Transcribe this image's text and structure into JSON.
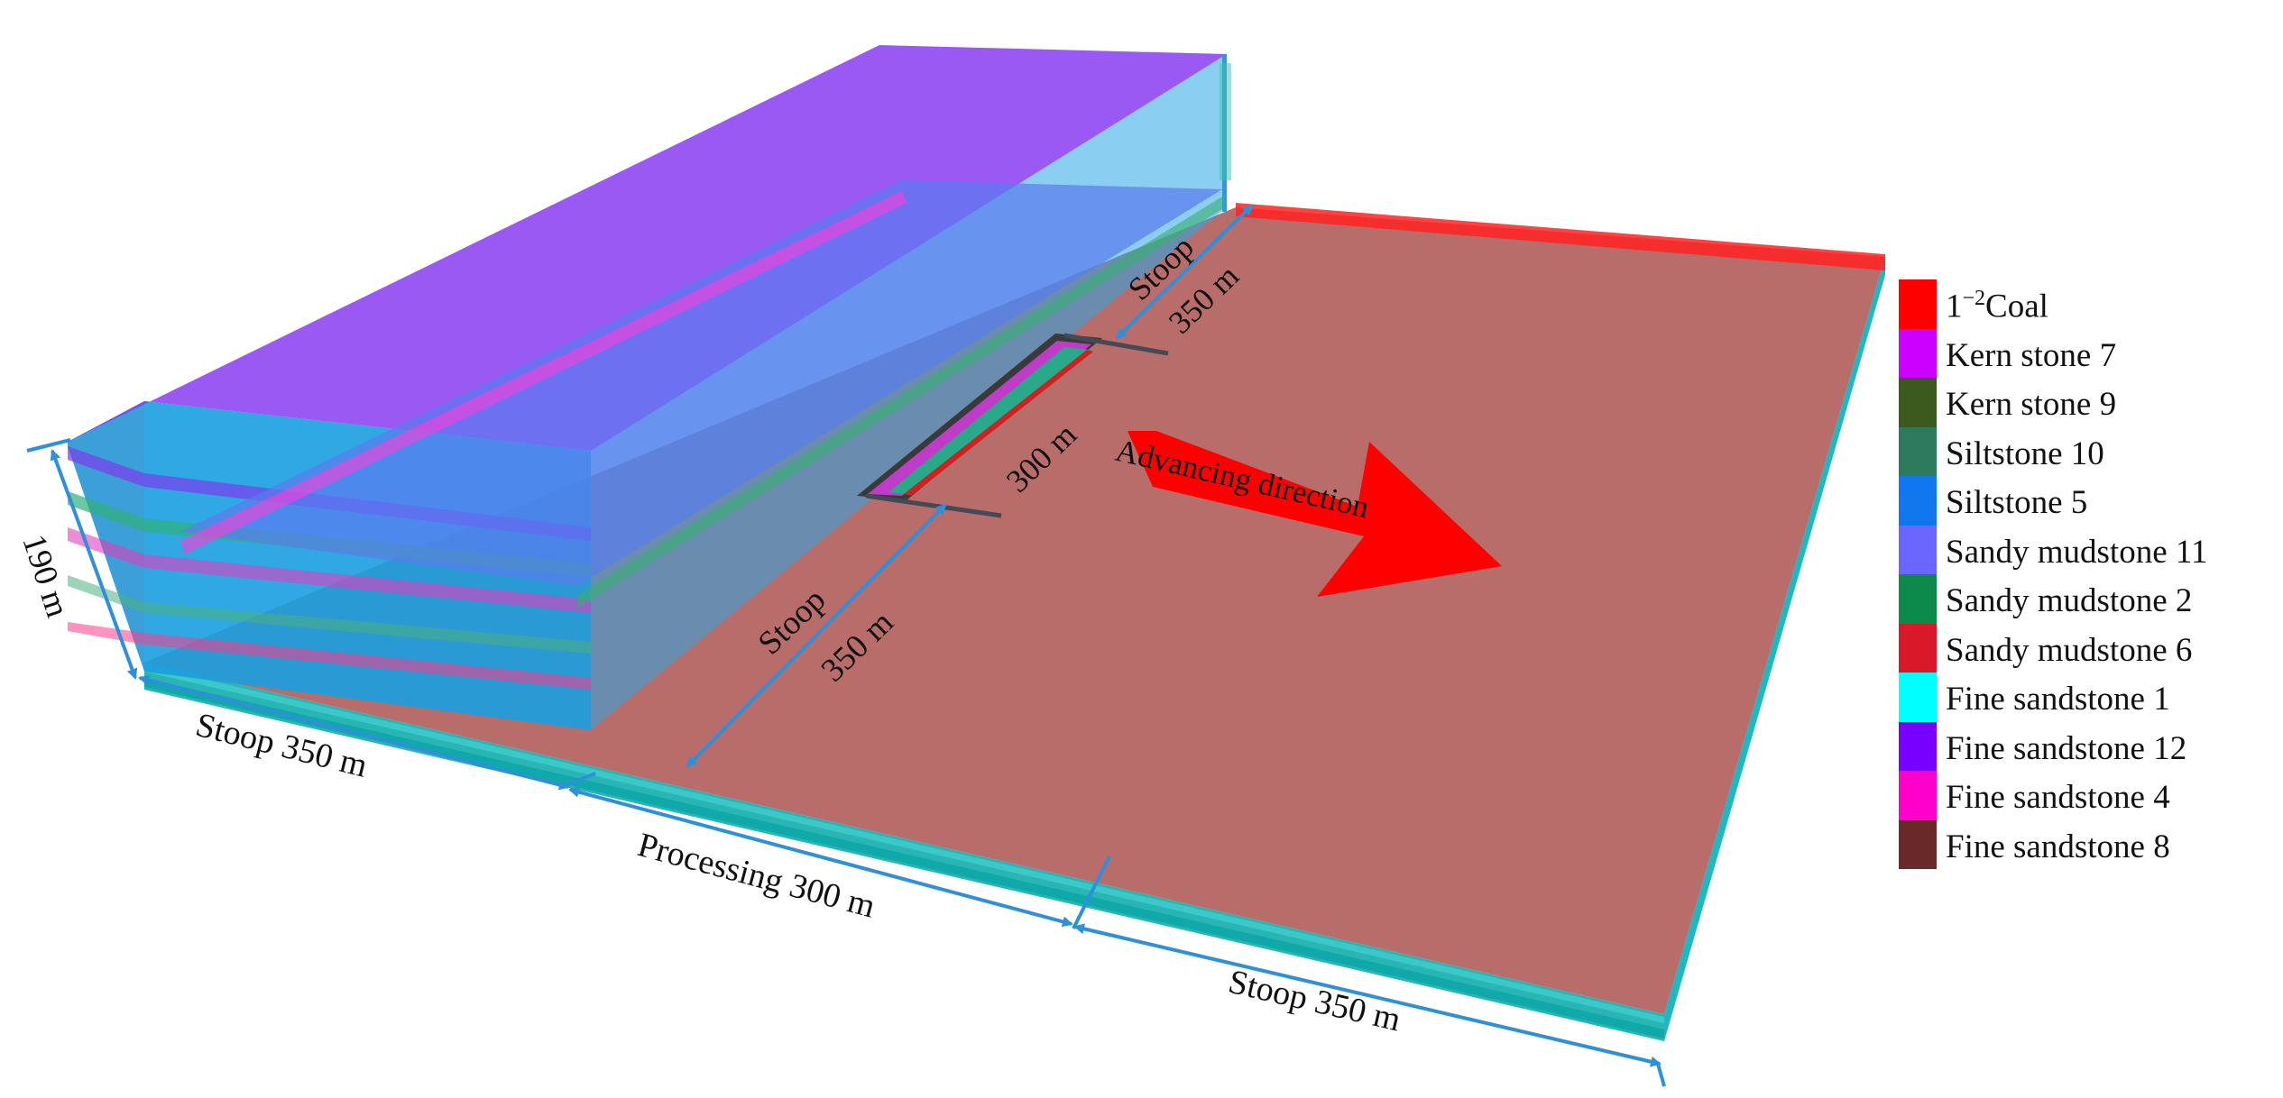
{
  "dimensions": {
    "height": "190 m",
    "stoop_left_bottom": "Stoop 350 m",
    "processing": "Processing 300 m",
    "stoop_right_bottom": "Stoop 350 m",
    "panel_width": "300 m",
    "stoop_word": "Stoop",
    "stoop_value": "350 m"
  },
  "arrow_label": "Advancing direction",
  "legend": [
    {
      "label_main": "1",
      "label_sup": "−2",
      "label_rest": "Coal",
      "color": "#ff0000"
    },
    {
      "label": "Kern stone 7",
      "color": "#cc00ff"
    },
    {
      "label": "Kern stone 9",
      "color": "#3d5a1e"
    },
    {
      "label": "Siltstone 10",
      "color": "#2e7a5e"
    },
    {
      "label": "Siltstone 5",
      "color": "#1177ee"
    },
    {
      "label": "Sandy mudstone 11",
      "color": "#6b66ff"
    },
    {
      "label": "Sandy mudstone  2",
      "color": "#0b8a4c"
    },
    {
      "label": "Sandy mudstone 6",
      "color": "#d9182a"
    },
    {
      "label": "Fine sandstone 1",
      "color": "#00ffff"
    },
    {
      "label": "Fine sandstone 12",
      "color": "#7700ff"
    },
    {
      "label": "Fine sandstone 4",
      "color": "#ff00cc"
    },
    {
      "label": "Fine sandstone 8",
      "color": "#6b2828"
    }
  ]
}
